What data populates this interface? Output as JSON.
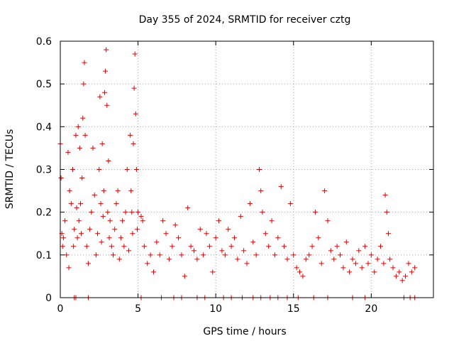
{
  "chart_data": {
    "type": "scatter",
    "title": "Day 355 of 2024, SRMTID for receiver cztg",
    "xlabel": "GPS time / hours",
    "ylabel": "SRMTID / TECUs",
    "xlim": [
      0,
      24
    ],
    "ylim": [
      0,
      0.6
    ],
    "grid": true,
    "marker": "+",
    "x_ticks": [
      0,
      5,
      10,
      15,
      20
    ],
    "x_tick_labels": [
      "0",
      "5",
      "10",
      "15",
      "20"
    ],
    "y_ticks": [
      0,
      0.1,
      0.2,
      0.3,
      0.4,
      0.5,
      0.6
    ],
    "y_tick_labels": [
      "0",
      "0.1",
      "0.2",
      "0.3",
      "0.4",
      "0.5",
      "0.6"
    ],
    "colors": {
      "points": "#dd0000",
      "grid": "#a0a0a0",
      "axes": "#000000"
    },
    "series": [
      {
        "name": "SRMTID",
        "x": [
          0.0,
          0.05,
          0.1,
          0.15,
          0.2,
          0.3,
          0.4,
          0.5,
          0.55,
          0.6,
          0.7,
          0.8,
          0.85,
          0.9,
          1.0,
          1.05,
          1.1,
          1.15,
          1.2,
          1.25,
          1.3,
          1.35,
          1.4,
          1.45,
          1.5,
          1.55,
          1.6,
          1.7,
          1.8,
          1.9,
          2.0,
          2.1,
          2.2,
          2.3,
          2.4,
          2.5,
          2.55,
          2.6,
          2.65,
          2.7,
          2.75,
          2.8,
          2.85,
          2.9,
          2.95,
          3.0,
          3.05,
          3.1,
          3.15,
          3.2,
          3.3,
          3.4,
          3.5,
          3.6,
          3.7,
          3.8,
          3.9,
          4.0,
          4.1,
          4.2,
          4.3,
          4.4,
          4.5,
          4.55,
          4.6,
          4.65,
          4.7,
          4.75,
          4.8,
          4.85,
          4.9,
          4.95,
          5.0,
          5.2,
          5.3,
          5.4,
          5.6,
          5.8,
          6.0,
          6.2,
          6.4,
          6.6,
          6.8,
          7.0,
          7.2,
          7.4,
          7.6,
          7.8,
          8.0,
          8.2,
          8.4,
          8.6,
          8.8,
          9.0,
          9.2,
          9.4,
          9.6,
          9.8,
          10.0,
          10.2,
          10.4,
          10.6,
          10.8,
          11.0,
          11.2,
          11.4,
          11.6,
          11.8,
          12.0,
          12.2,
          12.4,
          12.6,
          12.8,
          12.9,
          13.0,
          13.2,
          13.4,
          13.6,
          13.8,
          14.0,
          14.2,
          14.4,
          14.6,
          14.8,
          15.0,
          15.2,
          15.4,
          15.6,
          15.8,
          16.0,
          16.2,
          16.4,
          16.6,
          16.8,
          17.0,
          17.2,
          17.4,
          17.6,
          17.8,
          18.0,
          18.2,
          18.4,
          18.6,
          18.8,
          19.0,
          19.2,
          19.4,
          19.6,
          19.8,
          20.0,
          20.2,
          20.4,
          20.6,
          20.8,
          20.9,
          21.0,
          21.1,
          21.2,
          21.4,
          21.6,
          21.8,
          22.0,
          22.2,
          22.4,
          22.6,
          22.8
        ],
        "y": [
          0.36,
          0.28,
          0.15,
          0.12,
          0.14,
          0.18,
          0.1,
          0.34,
          0.07,
          0.25,
          0.22,
          0.3,
          0.12,
          0.16,
          0.38,
          0.21,
          0.14,
          0.4,
          0.18,
          0.35,
          0.22,
          0.15,
          0.28,
          0.42,
          0.5,
          0.55,
          0.38,
          0.12,
          0.08,
          0.16,
          0.2,
          0.35,
          0.24,
          0.1,
          0.15,
          0.3,
          0.47,
          0.22,
          0.13,
          0.36,
          0.19,
          0.25,
          0.48,
          0.53,
          0.58,
          0.45,
          0.2,
          0.32,
          0.14,
          0.18,
          0.12,
          0.1,
          0.16,
          0.22,
          0.25,
          0.09,
          0.14,
          0.18,
          0.12,
          0.2,
          0.3,
          0.11,
          0.38,
          0.25,
          0.2,
          0.15,
          0.36,
          0.49,
          0.57,
          0.43,
          0.3,
          0.16,
          0.2,
          0.19,
          0.18,
          0.12,
          0.08,
          0.1,
          0.06,
          0.13,
          0.1,
          0.18,
          0.15,
          0.09,
          0.12,
          0.17,
          0.14,
          0.1,
          0.05,
          0.21,
          0.12,
          0.11,
          0.09,
          0.16,
          0.1,
          0.15,
          0.12,
          0.06,
          0.14,
          0.18,
          0.11,
          0.1,
          0.16,
          0.12,
          0.14,
          0.09,
          0.19,
          0.11,
          0.08,
          0.22,
          0.13,
          0.1,
          0.3,
          0.25,
          0.2,
          0.15,
          0.12,
          0.18,
          0.1,
          0.14,
          0.26,
          0.12,
          0.09,
          0.22,
          0.1,
          0.07,
          0.06,
          0.05,
          0.09,
          0.1,
          0.12,
          0.2,
          0.14,
          0.08,
          0.25,
          0.18,
          0.11,
          0.09,
          0.12,
          0.1,
          0.07,
          0.13,
          0.06,
          0.09,
          0.08,
          0.11,
          0.07,
          0.12,
          0.08,
          0.1,
          0.06,
          0.09,
          0.12,
          0.08,
          0.24,
          0.2,
          0.15,
          0.09,
          0.07,
          0.05,
          0.06,
          0.04,
          0.05,
          0.08,
          0.06,
          0.07
        ],
        "zero_points_x": [
          0.9,
          1.0,
          1.8,
          5.2,
          6.5,
          7.3,
          7.8,
          8.8,
          9.3,
          10.5,
          11.0,
          11.7,
          12.4,
          12.9,
          13.5,
          14.0,
          14.6,
          15.3,
          16.3,
          17.2,
          18.8,
          19.6,
          22.1,
          22.5,
          22.8
        ]
      }
    ]
  }
}
